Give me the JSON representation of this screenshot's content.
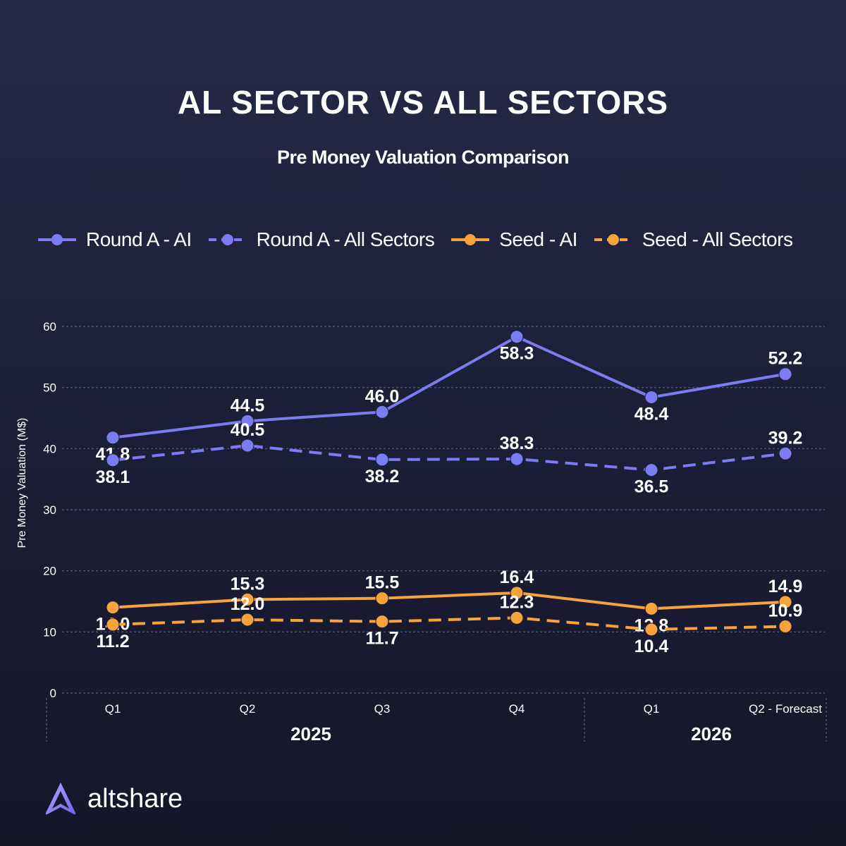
{
  "title": "AL SECTOR VS ALL SECTORS",
  "subtitle": "Pre Money Valuation Comparison",
  "brand": "altshare",
  "colors": {
    "background": "#1c1f38",
    "round_a": "#7b7cf0",
    "seed": "#f7a23a",
    "grid": "#5a5d80",
    "axis_text": "#ffffff"
  },
  "chart_data": {
    "type": "line",
    "title": "AL SECTOR VS ALL SECTORS",
    "subtitle": "Pre Money Valuation Comparison",
    "ylabel": "Pre Money Valuation (M$)",
    "xlabel": "",
    "ylim": [
      0,
      60
    ],
    "yticks": [
      0,
      10,
      20,
      30,
      40,
      50,
      60
    ],
    "grid": true,
    "legend_position": "top",
    "categories": [
      "Q1",
      "Q2",
      "Q3",
      "Q4",
      "Q1",
      "Q2 - Forecast"
    ],
    "groups": [
      {
        "label": "2025",
        "span": [
          0,
          3
        ]
      },
      {
        "label": "2026",
        "span": [
          4,
          5
        ]
      }
    ],
    "series": [
      {
        "name": "Round A - AI",
        "color": "#7b7cf0",
        "dashed": false,
        "values": [
          41.8,
          44.5,
          46.0,
          58.3,
          48.4,
          52.2
        ]
      },
      {
        "name": "Round A - All Sectors",
        "color": "#7b7cf0",
        "dashed": true,
        "values": [
          38.1,
          40.5,
          38.2,
          38.3,
          36.5,
          39.2
        ]
      },
      {
        "name": "Seed - AI",
        "color": "#f7a23a",
        "dashed": false,
        "values": [
          14.0,
          15.3,
          15.5,
          16.4,
          13.8,
          14.9
        ]
      },
      {
        "name": "Seed - All Sectors",
        "color": "#f7a23a",
        "dashed": true,
        "values": [
          11.2,
          12.0,
          11.7,
          12.3,
          10.4,
          10.9
        ]
      }
    ]
  }
}
